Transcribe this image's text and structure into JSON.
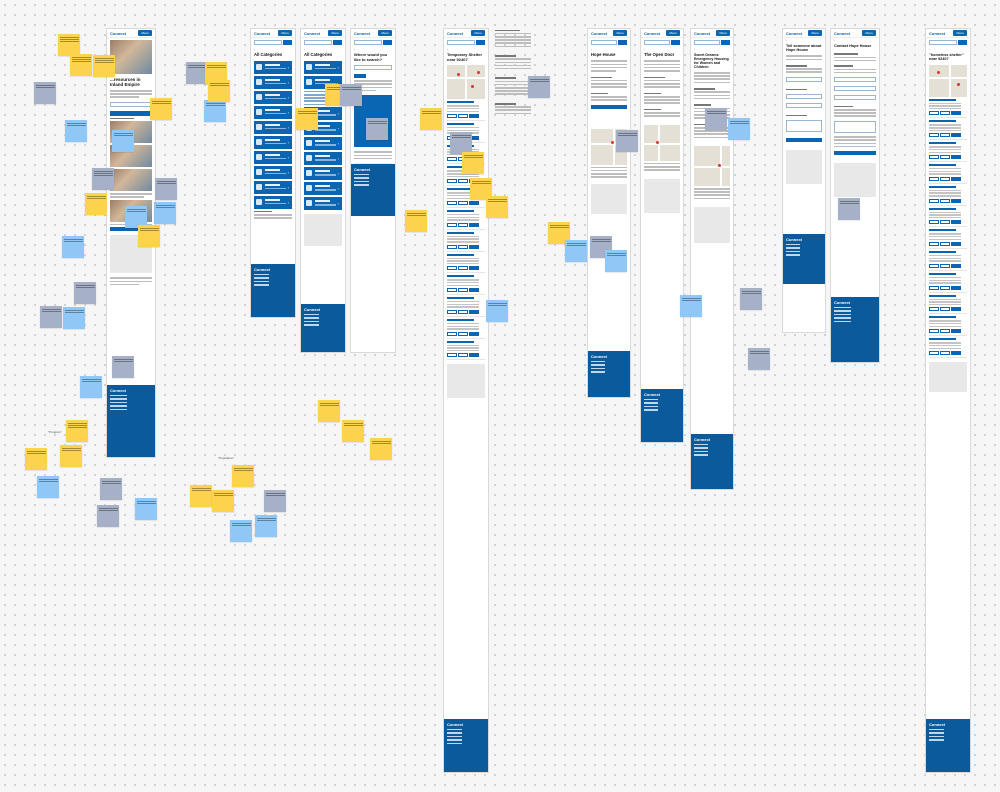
{
  "brand": "Connect",
  "menu_label": "Menu",
  "labels": {
    "freeform_a": "\"Program\"",
    "freeform_b": "\"Population\""
  },
  "screens": [
    {
      "id": "home",
      "title": "...resources in Inland Empire"
    },
    {
      "id": "categories-a",
      "title": "All Categories"
    },
    {
      "id": "categories-b",
      "title": "All Categories"
    },
    {
      "id": "where",
      "title": "Where would you like to search?"
    },
    {
      "id": "results",
      "title": "Temporary Shelter near 92407"
    },
    {
      "id": "detail-hope",
      "title": "Hope House"
    },
    {
      "id": "detail-opendoor",
      "title": "The Open Door"
    },
    {
      "id": "detail-sweet",
      "title": "Sweet Dreams Emergency Housing for Women and Children"
    },
    {
      "id": "tell",
      "title": "Tell someone about Hope House"
    },
    {
      "id": "contact",
      "title": "Contact Hope House"
    },
    {
      "id": "results-b",
      "title": "\"homeless shelter\" near 92407"
    }
  ],
  "categories": [
    "Food",
    "Housing",
    "Goods",
    "Transit",
    "Health",
    "Money",
    "Care",
    "Education",
    "Work",
    "Legal"
  ],
  "categories_b": [
    "Transit",
    "Health",
    "Money",
    "Care",
    "Education",
    "Work"
  ],
  "footer_brand": "Connect",
  "sticky_notes": [
    "research note",
    "user feedback",
    "question",
    "idea",
    "follow up"
  ]
}
